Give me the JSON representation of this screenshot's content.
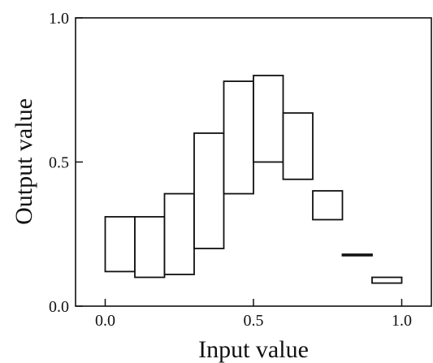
{
  "chart_data": {
    "type": "box",
    "xlabel": "Input value",
    "ylabel": "Output value",
    "xlim": [
      -0.1,
      1.1
    ],
    "ylim": [
      0.0,
      1.0
    ],
    "x_ticks": [
      0.0,
      0.5,
      1.0
    ],
    "x_tick_labels": [
      "0.0",
      "0.5",
      "1.0"
    ],
    "y_ticks": [
      0.0,
      0.5,
      1.0
    ],
    "y_tick_labels": [
      "0.0",
      "0.5",
      "1.0"
    ],
    "intervals": [
      {
        "x_start": 0.0,
        "x_end": 0.1,
        "low": 0.12,
        "high": 0.31
      },
      {
        "x_start": 0.1,
        "x_end": 0.2,
        "low": 0.1,
        "high": 0.31
      },
      {
        "x_start": 0.2,
        "x_end": 0.3,
        "low": 0.11,
        "high": 0.39
      },
      {
        "x_start": 0.3,
        "x_end": 0.4,
        "low": 0.2,
        "high": 0.6
      },
      {
        "x_start": 0.4,
        "x_end": 0.5,
        "low": 0.39,
        "high": 0.78
      },
      {
        "x_start": 0.5,
        "x_end": 0.6,
        "low": 0.5,
        "high": 0.8
      },
      {
        "x_start": 0.6,
        "x_end": 0.7,
        "low": 0.44,
        "high": 0.67
      },
      {
        "x_start": 0.7,
        "x_end": 0.8,
        "low": 0.3,
        "high": 0.4
      },
      {
        "x_start": 0.8,
        "x_end": 0.9,
        "low": 0.175,
        "high": 0.18
      },
      {
        "x_start": 0.9,
        "x_end": 1.0,
        "low": 0.08,
        "high": 0.1
      }
    ]
  }
}
